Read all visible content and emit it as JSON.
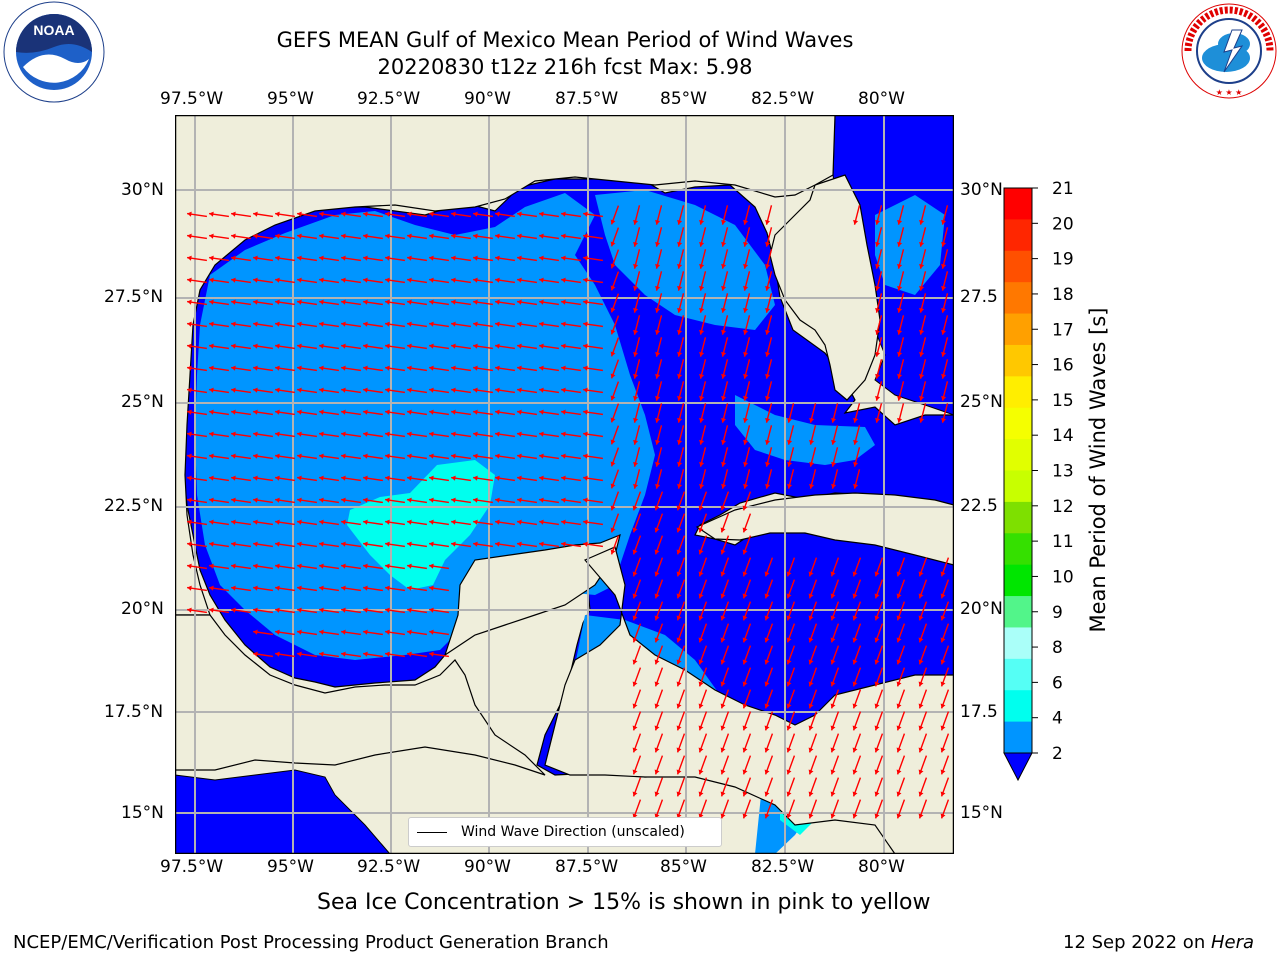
{
  "header": {
    "title_line1": "GEFS MEAN Gulf of Mexico Mean Period of Wind Waves",
    "title_line2": "20220830 t12z 216h fcst   Max: 5.98"
  },
  "logos": {
    "left": {
      "text": "NOAA",
      "ring_text": "NATIONAL OCEANIC AND ATMOSPHERIC ADMINISTRATION · U.S. DEPARTMENT OF COMMERCE"
    },
    "right": {
      "ring_text": "NATIONAL WEATHER SERVICE"
    }
  },
  "map": {
    "lon_labels": [
      "97.5°W",
      "95°W",
      "92.5°W",
      "90°W",
      "87.5°W",
      "85°W",
      "82.5°W",
      "80°W"
    ],
    "lat_labels_left": [
      "30°N",
      "27.5°N",
      "25°N",
      "22.5°N",
      "20°N",
      "17.5°N",
      "15°N"
    ],
    "lat_labels_right": [
      "30°N",
      "27.5",
      "25°N",
      "22.5",
      "20°N",
      "17.5",
      "15°N"
    ],
    "legend_label": "Wind Wave Direction (unscaled)",
    "colors": {
      "land": "#efeedb",
      "coast": "#000000",
      "grid": "#b3b3b3",
      "arrow": "#ff0000"
    }
  },
  "colorbar": {
    "label": "Mean Period of Wind Waves [s]",
    "ticks": [
      "21",
      "20",
      "19",
      "18",
      "17",
      "16",
      "15",
      "14",
      "13",
      "12",
      "11",
      "10",
      "9",
      "8",
      "6",
      "4",
      "2"
    ],
    "colors": [
      "#ff0000",
      "#ff2600",
      "#ff5000",
      "#ff7800",
      "#ffa000",
      "#ffc800",
      "#ffee00",
      "#f5ff00",
      "#e1ff00",
      "#c8ff00",
      "#7ee000",
      "#35e000",
      "#00e600",
      "#52f58a",
      "#aafff9",
      "#55fff5",
      "#00ffee",
      "#0095ff"
    ],
    "extend_color": "#0000ff"
  },
  "footer": {
    "note": "Sea Ice Concentration > 15% is shown in pink to yellow",
    "credit": "NCEP/EMC/Verification Post Processing Product Generation Branch",
    "date": "12 Sep 2022 on ",
    "host": "Hera"
  }
}
